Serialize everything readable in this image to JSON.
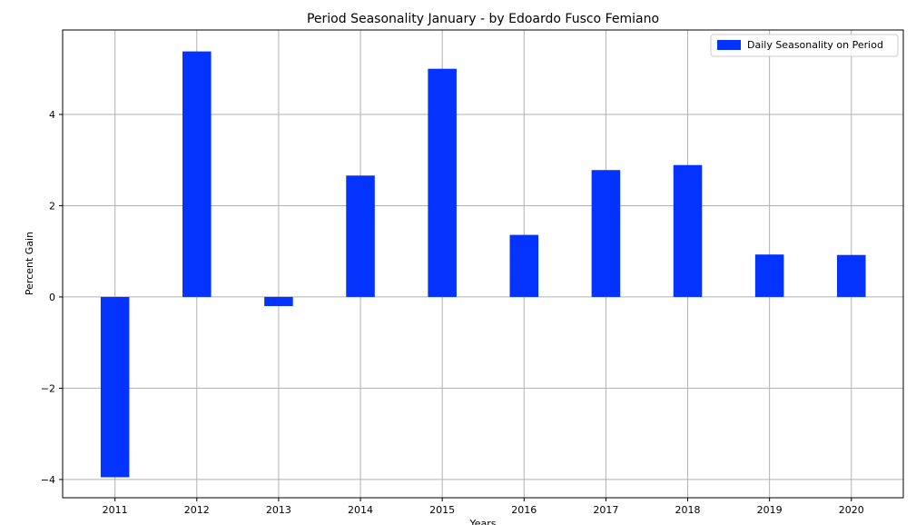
{
  "chart_data": {
    "type": "bar",
    "title": "Period Seasonality January  - by Edoardo Fusco Femiano",
    "xlabel": "Years",
    "ylabel": "Percent Gain",
    "categories": [
      "2011",
      "2012",
      "2013",
      "2014",
      "2015",
      "2016",
      "2017",
      "2018",
      "2019",
      "2020"
    ],
    "series": [
      {
        "name": "Daily Seasonality on Period",
        "values": [
          -3.95,
          5.38,
          -0.2,
          2.66,
          5.0,
          1.36,
          2.78,
          2.89,
          0.93,
          0.92
        ]
      }
    ],
    "ylim": [
      -4.4,
      5.85
    ],
    "yticks": [
      -4,
      -2,
      0,
      2,
      4
    ],
    "ytick_labels": [
      "−4",
      "−2",
      "0",
      "2",
      "4"
    ],
    "grid": true,
    "legend_position": "top-right",
    "bar_color": "#0433ff",
    "grid_color": "#b0b0b0"
  }
}
